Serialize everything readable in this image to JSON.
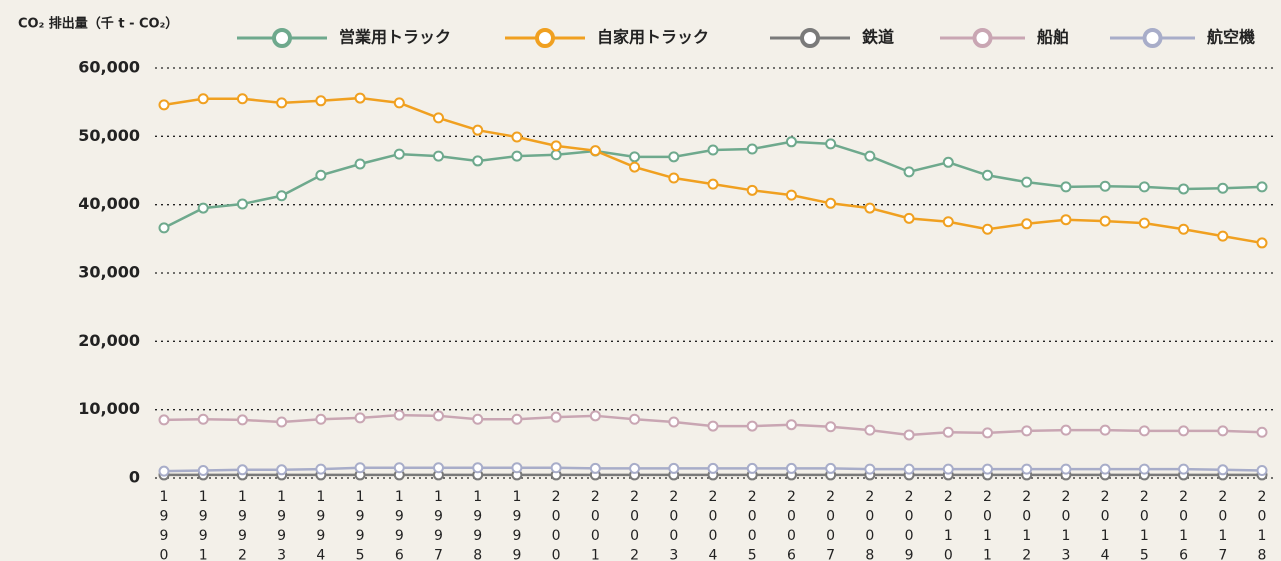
{
  "chart_data": {
    "type": "line",
    "y_label": "CO₂ 排出量（千 t - CO₂）",
    "categories": [
      "1990",
      "1991",
      "1992",
      "1993",
      "1994",
      "1995",
      "1996",
      "1997",
      "1998",
      "1999",
      "2000",
      "2001",
      "2002",
      "2003",
      "2004",
      "2005",
      "2006",
      "2007",
      "2008",
      "2009",
      "2010",
      "2011",
      "2012",
      "2013",
      "2014",
      "2015",
      "2016",
      "2017",
      "2018"
    ],
    "series": [
      {
        "name": "営業用トラック",
        "color": "#6ea98d",
        "values": [
          36600,
          39500,
          40100,
          41300,
          44300,
          45950,
          47400,
          47100,
          46400,
          47100,
          47300,
          47850,
          47000,
          47000,
          48000,
          48150,
          49200,
          48900,
          47100,
          44800,
          46200,
          44300,
          43300,
          42600,
          42700,
          42600,
          42300,
          42400,
          42600
        ]
      },
      {
        "name": "自家用トラック",
        "color": "#f0a020",
        "values": [
          54600,
          55500,
          55500,
          54900,
          55200,
          55600,
          54900,
          52700,
          50900,
          49900,
          48600,
          47900,
          45500,
          43900,
          43000,
          42100,
          41400,
          40200,
          39500,
          38000,
          37500,
          36400,
          37200,
          37800,
          37600,
          37300,
          36400,
          35400,
          34400
        ]
      },
      {
        "name": "鉄道",
        "color": "#7a7a7a",
        "values": [
          450,
          450,
          450,
          450,
          450,
          450,
          450,
          450,
          450,
          450,
          450,
          450,
          450,
          450,
          450,
          450,
          450,
          450,
          450,
          450,
          450,
          450,
          450,
          450,
          450,
          450,
          450,
          450,
          450
        ]
      },
      {
        "name": "船舶",
        "color": "#c9a6b3",
        "values": [
          8500,
          8600,
          8500,
          8200,
          8600,
          8800,
          9200,
          9100,
          8600,
          8600,
          8900,
          9100,
          8600,
          8200,
          7600,
          7600,
          7800,
          7500,
          7000,
          6300,
          6700,
          6600,
          6900,
          7000,
          7000,
          6900,
          6900,
          6900,
          6700
        ]
      },
      {
        "name": "航空機",
        "color": "#a8adc9",
        "values": [
          1000,
          1100,
          1200,
          1200,
          1300,
          1500,
          1500,
          1500,
          1500,
          1500,
          1500,
          1400,
          1400,
          1400,
          1400,
          1400,
          1400,
          1400,
          1300,
          1300,
          1300,
          1300,
          1300,
          1300,
          1300,
          1300,
          1300,
          1200,
          1100
        ]
      }
    ],
    "ylim": [
      0,
      60000
    ],
    "yticks": [
      0,
      {
        "value": 10000,
        "label": "10,000"
      },
      {
        "value": 20000,
        "label": "20,000"
      },
      {
        "value": 30000,
        "label": "30,000"
      },
      {
        "value": 40000,
        "label": "40,000"
      },
      {
        "value": 50000,
        "label": "50,000"
      },
      {
        "value": 60000,
        "label": "60,000"
      }
    ],
    "grid": true
  }
}
